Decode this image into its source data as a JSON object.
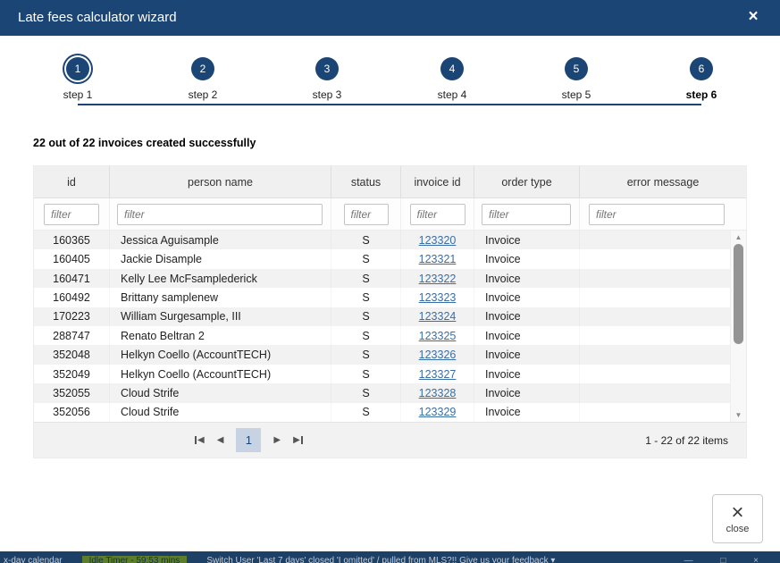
{
  "title_bar": {
    "title": "Late fees calculator wizard",
    "close_icon": "×"
  },
  "stepper": {
    "steps": [
      {
        "number": "1",
        "label": "step 1"
      },
      {
        "number": "2",
        "label": "step 2"
      },
      {
        "number": "3",
        "label": "step 3"
      },
      {
        "number": "4",
        "label": "step 4"
      },
      {
        "number": "5",
        "label": "step 5"
      },
      {
        "number": "6",
        "label": "step 6"
      }
    ]
  },
  "message": "22 out of 22 invoices created successfully",
  "table": {
    "columns": [
      "id",
      "person name",
      "status",
      "invoice id",
      "order type",
      "error message"
    ],
    "filter_placeholder": "filter",
    "rows": [
      {
        "id": "160365",
        "person_name": "Jessica Aguisample",
        "status": "S",
        "invoice_id": "123320",
        "order_type": "Invoice",
        "error_message": ""
      },
      {
        "id": "160405",
        "person_name": "Jackie Disample",
        "status": "S",
        "invoice_id": "123321",
        "order_type": "Invoice",
        "error_message": ""
      },
      {
        "id": "160471",
        "person_name": "Kelly Lee McFsamplederick",
        "status": "S",
        "invoice_id": "123322",
        "order_type": "Invoice",
        "error_message": ""
      },
      {
        "id": "160492",
        "person_name": "Brittany samplenew",
        "status": "S",
        "invoice_id": "123323",
        "order_type": "Invoice",
        "error_message": ""
      },
      {
        "id": "170223",
        "person_name": "William Surgesample, III",
        "status": "S",
        "invoice_id": "123324",
        "order_type": "Invoice",
        "error_message": ""
      },
      {
        "id": "288747",
        "person_name": "Renato Beltran 2",
        "status": "S",
        "invoice_id": "123325",
        "order_type": "Invoice",
        "error_message": ""
      },
      {
        "id": "352048",
        "person_name": "Helkyn Coello (AccountTECH)",
        "status": "S",
        "invoice_id": "123326",
        "order_type": "Invoice",
        "error_message": ""
      },
      {
        "id": "352049",
        "person_name": "Helkyn Coello (AccountTECH)",
        "status": "S",
        "invoice_id": "123327",
        "order_type": "Invoice",
        "error_message": ""
      },
      {
        "id": "352055",
        "person_name": "Cloud Strife",
        "status": "S",
        "invoice_id": "123328",
        "order_type": "Invoice",
        "error_message": ""
      },
      {
        "id": "352056",
        "person_name": "Cloud Strife",
        "status": "S",
        "invoice_id": "123329",
        "order_type": "Invoice",
        "error_message": ""
      }
    ]
  },
  "scrollbar": {
    "up_icon": "▲",
    "down_icon": "▼"
  },
  "pager": {
    "first_icon": "◀",
    "prev_icon": "◀",
    "next_icon": "▶",
    "last_icon": "▶",
    "current_page": "1",
    "info": "1 - 22 of 22 items"
  },
  "close_button": {
    "icon": "×",
    "label": "close"
  },
  "background_bar": {
    "fragment_left": "x-day calendar",
    "idle_badge": "Idle Timer - 59:53 mins",
    "fragment_right": "Switch User  'Last 7 days' closed 'I omitted' / pulled from MLS?!!  Give us your feedback  ▾",
    "right_icons": "— □ ×"
  },
  "colors": {
    "accent_navy": "#1b4575",
    "badge_green": "#5c7e2b",
    "link_blue": "#3a6ea5",
    "stripe_gray": "#f2f2f2",
    "pager_active_bg": "#c7d3e2"
  }
}
